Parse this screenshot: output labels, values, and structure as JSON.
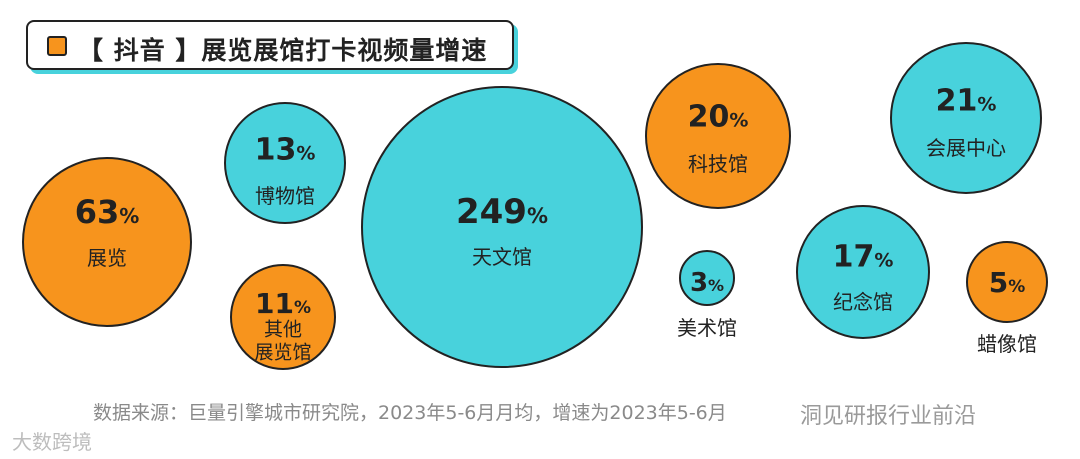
{
  "title": "【 抖音 】展览展馆打卡视频量增速",
  "source_note": "数据来源：巨量引擎城市研究院，2023年5-6月月均，增速为2023年5-6月",
  "watermark_left": "大数跨境",
  "watermark_right": "洞见研报行业前沿",
  "colors": {
    "orange": "#f7941d",
    "teal": "#48d2dc",
    "outline": "#222222"
  },
  "chart_data": {
    "type": "bubble",
    "title": "【 抖音 】展览展馆打卡视频量增速",
    "unit": "%",
    "series": [
      {
        "category": "展览",
        "value": 63,
        "color": "orange"
      },
      {
        "category": "博物馆",
        "value": 13,
        "color": "teal"
      },
      {
        "category": "其他展览馆",
        "value": 11,
        "color": "orange"
      },
      {
        "category": "天文馆",
        "value": 249,
        "color": "teal"
      },
      {
        "category": "美术馆",
        "value": 3,
        "color": "teal"
      },
      {
        "category": "科技馆",
        "value": 20,
        "color": "orange"
      },
      {
        "category": "纪念馆",
        "value": 17,
        "color": "teal"
      },
      {
        "category": "会展中心",
        "value": 21,
        "color": "teal"
      },
      {
        "category": "蜡像馆",
        "value": 5,
        "color": "orange"
      }
    ]
  }
}
